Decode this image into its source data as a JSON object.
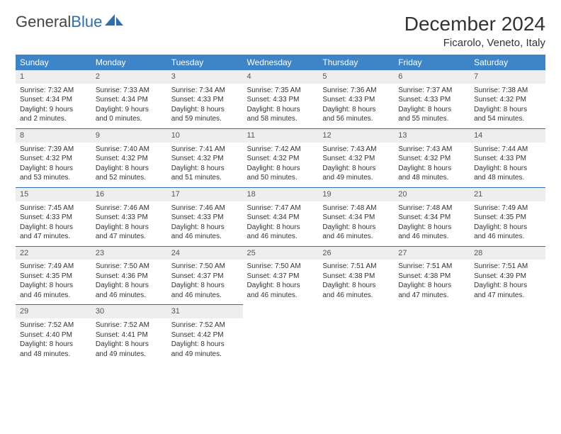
{
  "logo": {
    "text1": "General",
    "text2": "Blue"
  },
  "title": "December 2024",
  "location": "Ficarolo, Veneto, Italy",
  "calendar": {
    "columns": [
      "Sunday",
      "Monday",
      "Tuesday",
      "Wednesday",
      "Thursday",
      "Friday",
      "Saturday"
    ],
    "header_bg": "#3d85c6",
    "header_fg": "#ffffff",
    "daynum_bg": "#eeeeee",
    "rule_color": "#2f6fb0",
    "body_fontsize": 10,
    "header_fontsize": 12,
    "rows": [
      [
        {
          "n": "1",
          "sunrise": "7:32 AM",
          "sunset": "4:34 PM",
          "day_h": "9",
          "day_m": "2"
        },
        {
          "n": "2",
          "sunrise": "7:33 AM",
          "sunset": "4:34 PM",
          "day_h": "9",
          "day_m": "0"
        },
        {
          "n": "3",
          "sunrise": "7:34 AM",
          "sunset": "4:33 PM",
          "day_h": "8",
          "day_m": "59"
        },
        {
          "n": "4",
          "sunrise": "7:35 AM",
          "sunset": "4:33 PM",
          "day_h": "8",
          "day_m": "58"
        },
        {
          "n": "5",
          "sunrise": "7:36 AM",
          "sunset": "4:33 PM",
          "day_h": "8",
          "day_m": "56"
        },
        {
          "n": "6",
          "sunrise": "7:37 AM",
          "sunset": "4:33 PM",
          "day_h": "8",
          "day_m": "55"
        },
        {
          "n": "7",
          "sunrise": "7:38 AM",
          "sunset": "4:32 PM",
          "day_h": "8",
          "day_m": "54"
        }
      ],
      [
        {
          "n": "8",
          "sunrise": "7:39 AM",
          "sunset": "4:32 PM",
          "day_h": "8",
          "day_m": "53"
        },
        {
          "n": "9",
          "sunrise": "7:40 AM",
          "sunset": "4:32 PM",
          "day_h": "8",
          "day_m": "52"
        },
        {
          "n": "10",
          "sunrise": "7:41 AM",
          "sunset": "4:32 PM",
          "day_h": "8",
          "day_m": "51"
        },
        {
          "n": "11",
          "sunrise": "7:42 AM",
          "sunset": "4:32 PM",
          "day_h": "8",
          "day_m": "50"
        },
        {
          "n": "12",
          "sunrise": "7:43 AM",
          "sunset": "4:32 PM",
          "day_h": "8",
          "day_m": "49"
        },
        {
          "n": "13",
          "sunrise": "7:43 AM",
          "sunset": "4:32 PM",
          "day_h": "8",
          "day_m": "48"
        },
        {
          "n": "14",
          "sunrise": "7:44 AM",
          "sunset": "4:33 PM",
          "day_h": "8",
          "day_m": "48"
        }
      ],
      [
        {
          "n": "15",
          "sunrise": "7:45 AM",
          "sunset": "4:33 PM",
          "day_h": "8",
          "day_m": "47"
        },
        {
          "n": "16",
          "sunrise": "7:46 AM",
          "sunset": "4:33 PM",
          "day_h": "8",
          "day_m": "47"
        },
        {
          "n": "17",
          "sunrise": "7:46 AM",
          "sunset": "4:33 PM",
          "day_h": "8",
          "day_m": "46"
        },
        {
          "n": "18",
          "sunrise": "7:47 AM",
          "sunset": "4:34 PM",
          "day_h": "8",
          "day_m": "46"
        },
        {
          "n": "19",
          "sunrise": "7:48 AM",
          "sunset": "4:34 PM",
          "day_h": "8",
          "day_m": "46"
        },
        {
          "n": "20",
          "sunrise": "7:48 AM",
          "sunset": "4:34 PM",
          "day_h": "8",
          "day_m": "46"
        },
        {
          "n": "21",
          "sunrise": "7:49 AM",
          "sunset": "4:35 PM",
          "day_h": "8",
          "day_m": "46"
        }
      ],
      [
        {
          "n": "22",
          "sunrise": "7:49 AM",
          "sunset": "4:35 PM",
          "day_h": "8",
          "day_m": "46"
        },
        {
          "n": "23",
          "sunrise": "7:50 AM",
          "sunset": "4:36 PM",
          "day_h": "8",
          "day_m": "46"
        },
        {
          "n": "24",
          "sunrise": "7:50 AM",
          "sunset": "4:37 PM",
          "day_h": "8",
          "day_m": "46"
        },
        {
          "n": "25",
          "sunrise": "7:50 AM",
          "sunset": "4:37 PM",
          "day_h": "8",
          "day_m": "46"
        },
        {
          "n": "26",
          "sunrise": "7:51 AM",
          "sunset": "4:38 PM",
          "day_h": "8",
          "day_m": "46"
        },
        {
          "n": "27",
          "sunrise": "7:51 AM",
          "sunset": "4:38 PM",
          "day_h": "8",
          "day_m": "47"
        },
        {
          "n": "28",
          "sunrise": "7:51 AM",
          "sunset": "4:39 PM",
          "day_h": "8",
          "day_m": "47"
        }
      ],
      [
        {
          "n": "29",
          "sunrise": "7:52 AM",
          "sunset": "4:40 PM",
          "day_h": "8",
          "day_m": "48"
        },
        {
          "n": "30",
          "sunrise": "7:52 AM",
          "sunset": "4:41 PM",
          "day_h": "8",
          "day_m": "49"
        },
        {
          "n": "31",
          "sunrise": "7:52 AM",
          "sunset": "4:42 PM",
          "day_h": "8",
          "day_m": "49"
        },
        null,
        null,
        null,
        null
      ]
    ]
  }
}
